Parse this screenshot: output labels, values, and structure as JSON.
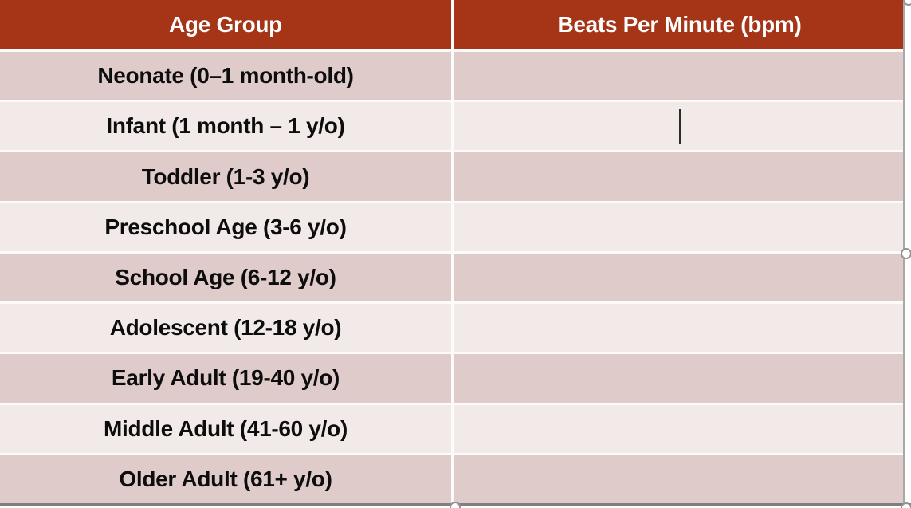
{
  "table": {
    "columns": [
      {
        "label": "Age Group"
      },
      {
        "label": "Beats Per Minute (bpm)"
      }
    ],
    "rows": [
      {
        "age_group": "Neonate (0–1 month-old)",
        "bpm": ""
      },
      {
        "age_group": "Infant (1 month – 1 y/o)",
        "bpm": ""
      },
      {
        "age_group": "Toddler (1-3 y/o)",
        "bpm": ""
      },
      {
        "age_group": "Preschool Age (3-6 y/o)",
        "bpm": ""
      },
      {
        "age_group": "School Age (6-12 y/o)",
        "bpm": ""
      },
      {
        "age_group": "Adolescent (12-18 y/o)",
        "bpm": ""
      },
      {
        "age_group": "Early Adult (19-40 y/o)",
        "bpm": ""
      },
      {
        "age_group": "Middle Adult (41-60 y/o)",
        "bpm": ""
      },
      {
        "age_group": "Older Adult (61+ y/o)",
        "bpm": ""
      }
    ]
  },
  "editing_state": {
    "caret_visible": true,
    "caret_location": "bpm cell of Infant row",
    "selection_handles": [
      "top-right",
      "right-middle",
      "bottom-center",
      "bottom-right"
    ]
  },
  "colors": {
    "header_bg": "#a63517",
    "header_text": "#ffffff",
    "row_dark": "#dfcbca",
    "row_light": "#f2eae8",
    "body_text": "#0d0d0d",
    "selection_gray": "#949494"
  }
}
